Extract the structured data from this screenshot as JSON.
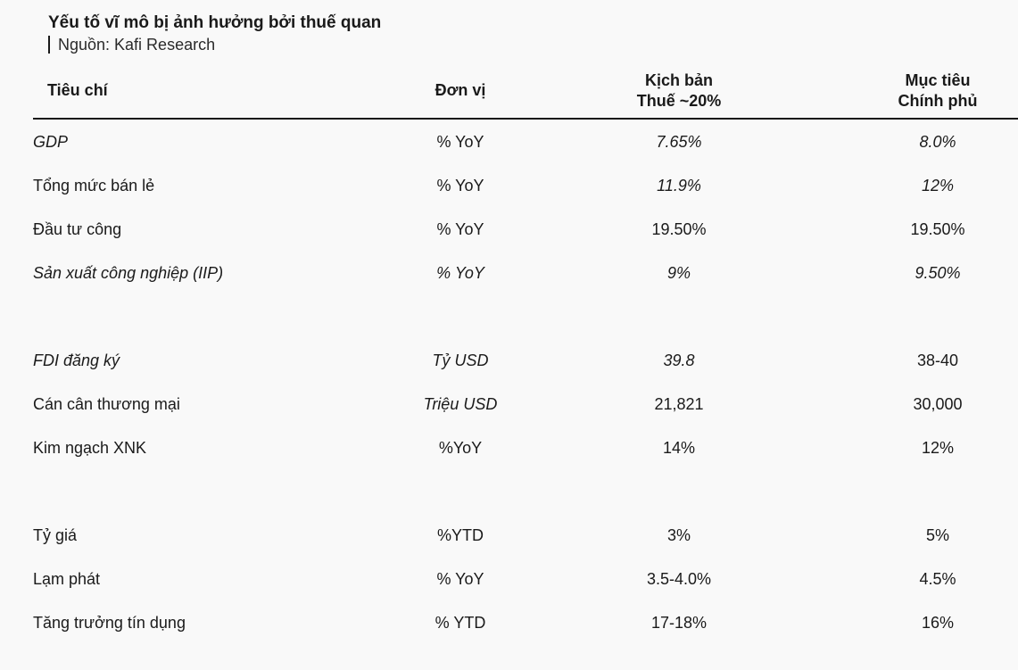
{
  "title": "Yếu tố vĩ mô bị ảnh hưởng bởi thuế quan",
  "source": "Nguồn: Kafi Research",
  "headers": {
    "criteria": "Tiêu chí",
    "unit": "Đơn vị",
    "scenario_line1": "Kịch bản",
    "scenario_line2": "Thuế ~20%",
    "target_line1": "Mục tiêu",
    "target_line2": "Chính phủ"
  },
  "rows": [
    {
      "name": "GDP",
      "unit": "% YoY",
      "scenario": "7.65%",
      "target": "8.0%"
    },
    {
      "name": "Tổng mức bán lẻ",
      "unit": "% YoY",
      "scenario": "11.9%",
      "target": "12%"
    },
    {
      "name": "Đầu tư công",
      "unit": "% YoY",
      "scenario": "19.50%",
      "target": "19.50%"
    },
    {
      "name": "Sản xuất công nghiệp (IIP)",
      "unit": "% YoY",
      "scenario": "9%",
      "target": "9.50%"
    },
    {
      "name": "FDI đăng ký",
      "unit": "Tỷ USD",
      "scenario": "39.8",
      "target": "38-40"
    },
    {
      "name": "Cán cân thương mại",
      "unit": "Triệu USD",
      "scenario": "21,821",
      "target": "30,000"
    },
    {
      "name": "Kim ngạch XNK",
      "unit": "%YoY",
      "scenario": "14%",
      "target": "12%"
    },
    {
      "name": "Tỷ giá",
      "unit": "%YTD",
      "scenario": "3%",
      "target": "5%"
    },
    {
      "name": "Lạm phát",
      "unit": "% YoY",
      "scenario": "3.5-4.0%",
      "target": "4.5%"
    },
    {
      "name": "Tăng trưởng tín dụng",
      "unit": "% YTD",
      "scenario": "17-18%",
      "target": "16%"
    }
  ]
}
